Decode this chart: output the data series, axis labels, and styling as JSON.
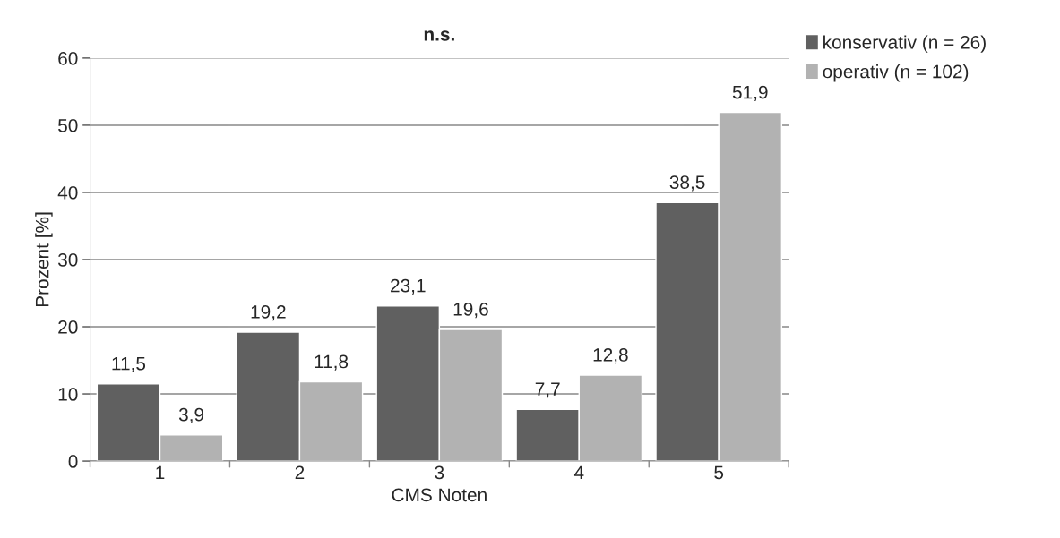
{
  "chart_data": {
    "type": "bar",
    "title": "n.s.",
    "xlabel": "CMS Noten",
    "ylabel": "Prozent [%]",
    "categories": [
      "1",
      "2",
      "3",
      "4",
      "5"
    ],
    "series": [
      {
        "name": "konservativ (n = 26)",
        "color": "#606060",
        "values": [
          11.5,
          19.2,
          23.1,
          7.7,
          38.5
        ],
        "value_labels": [
          "11,5",
          "19,2",
          "23,1",
          "7,7",
          "38,5"
        ]
      },
      {
        "name": "operativ (n = 102)",
        "color": "#b2b2b2",
        "values": [
          3.9,
          11.8,
          19.6,
          12.8,
          51.9
        ],
        "value_labels": [
          "3,9",
          "11,8",
          "19,6",
          "12,8",
          "51,9"
        ]
      }
    ],
    "ylim": [
      0,
      60
    ],
    "yticks": [
      0,
      10,
      20,
      30,
      40,
      50,
      60
    ],
    "grid": "y",
    "legend": "top right"
  }
}
